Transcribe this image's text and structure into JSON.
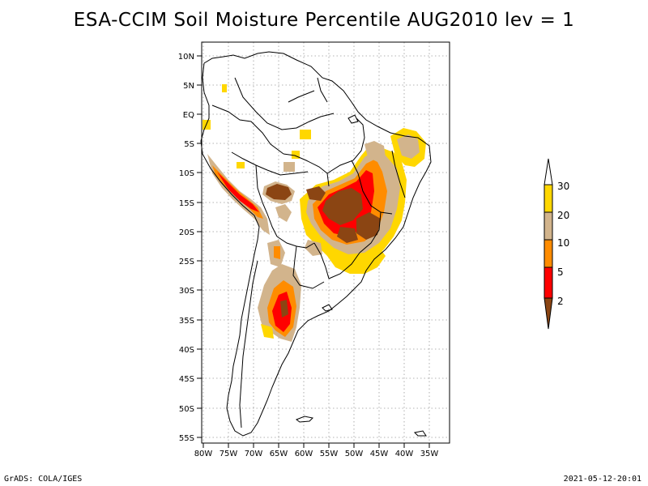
{
  "title": "ESA-CCIM Soil Moisture Percentile AUG2010 lev = 1",
  "footer": {
    "left": "GrADS: COLA/IGES",
    "right": "2021-05-12-20:01"
  },
  "map": {
    "lat_ticks": [
      "10N",
      "5N",
      "EQ",
      "5S",
      "10S",
      "15S",
      "20S",
      "25S",
      "30S",
      "35S",
      "40S",
      "45S",
      "50S",
      "55S"
    ],
    "lon_ticks": [
      "80W",
      "75W",
      "70W",
      "65W",
      "60W",
      "55W",
      "50W",
      "45W",
      "40W",
      "35W"
    ],
    "colors": {
      "brown": "#8b4513",
      "red": "#ff0000",
      "orange": "#ff8c00",
      "tan": "#d2b48c",
      "yellow": "#ffd700"
    }
  },
  "legend": {
    "labels": [
      "30",
      "20",
      "10",
      "5",
      "2"
    ],
    "colors": [
      "#ffffff",
      "#ffd700",
      "#d2b48c",
      "#ff8c00",
      "#ff0000",
      "#8b4513"
    ]
  }
}
